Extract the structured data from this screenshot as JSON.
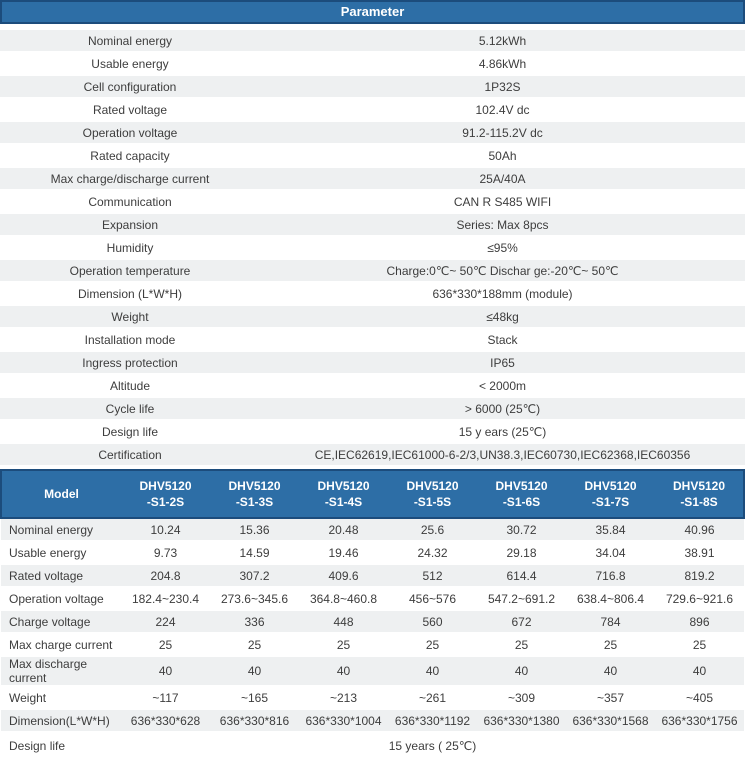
{
  "colors": {
    "header_blue": "#2d6ea6",
    "header_border": "#1c4c7c",
    "alt_row": "#eef0f1",
    "text": "#3d3d3d"
  },
  "param_table": {
    "title": "Parameter",
    "rows": [
      {
        "label": "Nominal energy",
        "value": "5.12kWh"
      },
      {
        "label": "Usable energy",
        "value": "4.86kWh"
      },
      {
        "label": "Cell configuration",
        "value": "1P32S"
      },
      {
        "label": "Rated voltage",
        "value": "102.4V dc"
      },
      {
        "label": "Operation voltage",
        "value": "91.2-115.2V dc"
      },
      {
        "label": "Rated capacity",
        "value": "50Ah"
      },
      {
        "label": "Max charge/discharge current",
        "value": "25A/40A"
      },
      {
        "label": "Communication",
        "value": "CAN R S485 WIFI"
      },
      {
        "label": "Expansion",
        "value": "Series:  Max 8pcs"
      },
      {
        "label": "Humidity",
        "value": "≤95%"
      },
      {
        "label": "Operation temperature",
        "value": "Charge:0℃~ 50℃ Dischar ge:-20℃~ 50℃"
      },
      {
        "label": "Dimension (L*W*H)",
        "value": "636*330*188mm  (module)"
      },
      {
        "label": "Weight",
        "value": "≤48kg"
      },
      {
        "label": "Installation mode",
        "value": "Stack"
      },
      {
        "label": "Ingress protection",
        "value": "IP65"
      },
      {
        "label": "Altitude",
        "value": "< 2000m"
      },
      {
        "label": "Cycle life",
        "value": "> 6000  (25℃)"
      },
      {
        "label": "Design life",
        "value": "15 y ears  (25℃)"
      },
      {
        "label": "Certification",
        "value": "CE,IEC62619,IEC61000-6-2/3,UN38.3,IEC60730,IEC62368,IEC60356"
      }
    ]
  },
  "model_table": {
    "corner_label": "Model",
    "columns": [
      {
        "line1": "DHV5120",
        "line2": "-S1-2S"
      },
      {
        "line1": "DHV5120",
        "line2": "-S1-3S"
      },
      {
        "line1": "DHV5120",
        "line2": "-S1-4S"
      },
      {
        "line1": "DHV5120",
        "line2": "-S1-5S"
      },
      {
        "line1": "DHV5120",
        "line2": "-S1-6S"
      },
      {
        "line1": "DHV5120",
        "line2": "-S1-7S"
      },
      {
        "line1": "DHV5120",
        "line2": "-S1-8S"
      }
    ],
    "rows": [
      {
        "label": "Nominal energy",
        "values": [
          "10.24",
          "15.36",
          "20.48",
          "25.6",
          "30.72",
          "35.84",
          "40.96"
        ]
      },
      {
        "label": "Usable energy",
        "values": [
          "9.73",
          "14.59",
          "19.46",
          "24.32",
          "29.18",
          "34.04",
          "38.91"
        ]
      },
      {
        "label": "Rated voltage",
        "values": [
          "204.8",
          "307.2",
          "409.6",
          "512",
          "614.4",
          "716.8",
          "819.2"
        ]
      },
      {
        "label": "Operation voltage",
        "values": [
          "182.4~230.4",
          "273.6~345.6",
          "364.8~460.8",
          "456~576",
          "547.2~691.2",
          "638.4~806.4",
          "729.6~921.6"
        ]
      },
      {
        "label": "Charge voltage",
        "values": [
          "224",
          "336",
          "448",
          "560",
          "672",
          "784",
          "896"
        ]
      },
      {
        "label": "Max charge current",
        "values": [
          "25",
          "25",
          "25",
          "25",
          "25",
          "25",
          "25"
        ]
      },
      {
        "label": "Max discharge current",
        "values": [
          "40",
          "40",
          "40",
          "40",
          "40",
          "40",
          "40"
        ]
      },
      {
        "label": "Weight",
        "values": [
          "~117",
          "~165",
          "~213",
          "~261",
          "~309",
          "~357",
          "~405"
        ]
      },
      {
        "label": "Dimension(L*W*H)",
        "values": [
          "636*330*628",
          "636*330*816",
          "636*330*1004",
          "636*330*1192",
          "636*330*1380",
          "636*330*1568",
          "636*330*1756"
        ]
      }
    ],
    "footer": {
      "label": "Design life",
      "value": "15 years ( 25℃)"
    }
  }
}
